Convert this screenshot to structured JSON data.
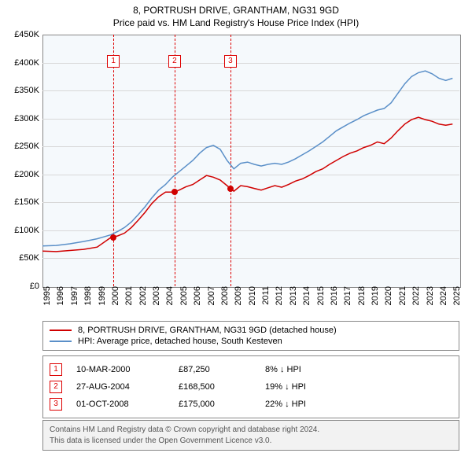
{
  "title": "8, PORTRUSH DRIVE, GRANTHAM, NG31 9GD",
  "subtitle": "Price paid vs. HM Land Registry's House Price Index (HPI)",
  "chart": {
    "type": "line",
    "background_color": "#f5f9fc",
    "grid_color": "#d8d8d8",
    "border_color": "#888888",
    "x_min": 1995,
    "x_max": 2025.5,
    "y_min": 0,
    "y_max": 450000,
    "ytick_step": 50000,
    "yticks": [
      "£0",
      "£50K",
      "£100K",
      "£150K",
      "£200K",
      "£250K",
      "£300K",
      "£350K",
      "£400K",
      "£450K"
    ],
    "xticks": [
      1995,
      1996,
      1997,
      1998,
      1999,
      2000,
      2001,
      2002,
      2003,
      2004,
      2005,
      2006,
      2007,
      2008,
      2009,
      2010,
      2011,
      2012,
      2013,
      2014,
      2015,
      2016,
      2017,
      2018,
      2019,
      2020,
      2021,
      2022,
      2023,
      2024,
      2025
    ],
    "tick_fontsize": 11,
    "title_fontsize": 12,
    "series": [
      {
        "name": "8, PORTRUSH DRIVE, GRANTHAM, NG31 9GD (detached house)",
        "color": "#d00000",
        "line_width": 1.5,
        "data": [
          [
            1995,
            63000
          ],
          [
            1996,
            62000
          ],
          [
            1997,
            64000
          ],
          [
            1998,
            66000
          ],
          [
            1999,
            70000
          ],
          [
            2000,
            87250
          ],
          [
            2000.5,
            90000
          ],
          [
            2001,
            95000
          ],
          [
            2001.5,
            105000
          ],
          [
            2002,
            118000
          ],
          [
            2002.5,
            132000
          ],
          [
            2003,
            148000
          ],
          [
            2003.5,
            160000
          ],
          [
            2004,
            168500
          ],
          [
            2004.66,
            168500
          ],
          [
            2005,
            172000
          ],
          [
            2005.5,
            178000
          ],
          [
            2006,
            182000
          ],
          [
            2006.5,
            190000
          ],
          [
            2007,
            198000
          ],
          [
            2007.5,
            195000
          ],
          [
            2008,
            190000
          ],
          [
            2008.5,
            180000
          ],
          [
            2008.75,
            175000
          ],
          [
            2009,
            170000
          ],
          [
            2009.5,
            180000
          ],
          [
            2010,
            178000
          ],
          [
            2010.5,
            175000
          ],
          [
            2011,
            172000
          ],
          [
            2011.5,
            176000
          ],
          [
            2012,
            180000
          ],
          [
            2012.5,
            177000
          ],
          [
            2013,
            182000
          ],
          [
            2013.5,
            188000
          ],
          [
            2014,
            192000
          ],
          [
            2014.5,
            198000
          ],
          [
            2015,
            205000
          ],
          [
            2015.5,
            210000
          ],
          [
            2016,
            218000
          ],
          [
            2016.5,
            225000
          ],
          [
            2017,
            232000
          ],
          [
            2017.5,
            238000
          ],
          [
            2018,
            242000
          ],
          [
            2018.5,
            248000
          ],
          [
            2019,
            252000
          ],
          [
            2019.5,
            258000
          ],
          [
            2020,
            255000
          ],
          [
            2020.5,
            265000
          ],
          [
            2021,
            278000
          ],
          [
            2021.5,
            290000
          ],
          [
            2022,
            298000
          ],
          [
            2022.5,
            302000
          ],
          [
            2023,
            298000
          ],
          [
            2023.5,
            295000
          ],
          [
            2024,
            290000
          ],
          [
            2024.5,
            288000
          ],
          [
            2025,
            290000
          ]
        ]
      },
      {
        "name": "HPI: Average price, detached house, South Kesteven",
        "color": "#5a8fc8",
        "line_width": 1.5,
        "data": [
          [
            1995,
            72000
          ],
          [
            1996,
            73000
          ],
          [
            1997,
            76000
          ],
          [
            1998,
            80000
          ],
          [
            1999,
            85000
          ],
          [
            2000,
            92000
          ],
          [
            2000.5,
            98000
          ],
          [
            2001,
            105000
          ],
          [
            2001.5,
            115000
          ],
          [
            2002,
            128000
          ],
          [
            2002.5,
            142000
          ],
          [
            2003,
            158000
          ],
          [
            2003.5,
            172000
          ],
          [
            2004,
            182000
          ],
          [
            2004.5,
            195000
          ],
          [
            2005,
            205000
          ],
          [
            2005.5,
            215000
          ],
          [
            2006,
            225000
          ],
          [
            2006.5,
            238000
          ],
          [
            2007,
            248000
          ],
          [
            2007.5,
            252000
          ],
          [
            2008,
            245000
          ],
          [
            2008.5,
            225000
          ],
          [
            2009,
            210000
          ],
          [
            2009.5,
            220000
          ],
          [
            2010,
            222000
          ],
          [
            2010.5,
            218000
          ],
          [
            2011,
            215000
          ],
          [
            2011.5,
            218000
          ],
          [
            2012,
            220000
          ],
          [
            2012.5,
            218000
          ],
          [
            2013,
            222000
          ],
          [
            2013.5,
            228000
          ],
          [
            2014,
            235000
          ],
          [
            2014.5,
            242000
          ],
          [
            2015,
            250000
          ],
          [
            2015.5,
            258000
          ],
          [
            2016,
            268000
          ],
          [
            2016.5,
            278000
          ],
          [
            2017,
            285000
          ],
          [
            2017.5,
            292000
          ],
          [
            2018,
            298000
          ],
          [
            2018.5,
            305000
          ],
          [
            2019,
            310000
          ],
          [
            2019.5,
            315000
          ],
          [
            2020,
            318000
          ],
          [
            2020.5,
            328000
          ],
          [
            2021,
            345000
          ],
          [
            2021.5,
            362000
          ],
          [
            2022,
            375000
          ],
          [
            2022.5,
            382000
          ],
          [
            2023,
            385000
          ],
          [
            2023.5,
            380000
          ],
          [
            2024,
            372000
          ],
          [
            2024.5,
            368000
          ],
          [
            2025,
            372000
          ]
        ]
      }
    ],
    "event_lines": [
      {
        "x": 2000.19,
        "label": "1",
        "box_top_pct": 8
      },
      {
        "x": 2004.66,
        "label": "2",
        "box_top_pct": 8
      },
      {
        "x": 2008.75,
        "label": "3",
        "box_top_pct": 8
      }
    ],
    "markers": [
      {
        "x": 2000.19,
        "y": 87250,
        "color": "#d00000"
      },
      {
        "x": 2004.66,
        "y": 168500,
        "color": "#d00000"
      },
      {
        "x": 2008.75,
        "y": 175000,
        "color": "#d00000"
      }
    ]
  },
  "legend": {
    "items": [
      {
        "color": "#d00000",
        "label": "8, PORTRUSH DRIVE, GRANTHAM, NG31 9GD (detached house)"
      },
      {
        "color": "#5a8fc8",
        "label": "HPI: Average price, detached house, South Kesteven"
      }
    ]
  },
  "events_table": {
    "rows": [
      {
        "n": "1",
        "date": "10-MAR-2000",
        "price": "£87,250",
        "diff": "8% ↓ HPI"
      },
      {
        "n": "2",
        "date": "27-AUG-2004",
        "price": "£168,500",
        "diff": "19% ↓ HPI"
      },
      {
        "n": "3",
        "date": "01-OCT-2008",
        "price": "£175,000",
        "diff": "22% ↓ HPI"
      }
    ]
  },
  "footer": {
    "line1": "Contains HM Land Registry data © Crown copyright and database right 2024.",
    "line2": "This data is licensed under the Open Government Licence v3.0."
  }
}
